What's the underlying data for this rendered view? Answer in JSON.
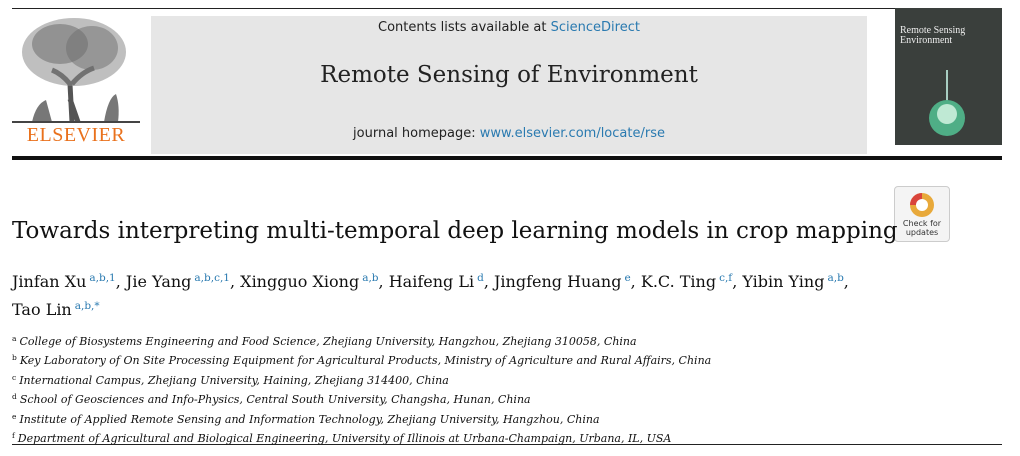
{
  "header": {
    "contents_prefix": "Contents lists available at",
    "contents_link": "ScienceDirect",
    "journal": "Remote Sensing of Environment",
    "homepage_prefix": "journal homepage:",
    "homepage_link": "www.elsevier.com/locate/rse",
    "publisher": "ELSEVIER",
    "cover_lines": [
      "Remote Sensing",
      "Environment"
    ]
  },
  "badge": {
    "lines": [
      "Check for",
      "updates"
    ]
  },
  "title": "Towards interpreting multi-temporal deep learning models in crop mapping",
  "authors": [
    {
      "name": "Jinfan Xu",
      "sup": "a,b,1",
      "after": ","
    },
    {
      "name": "Jie Yang",
      "sup": "a,b,c,1",
      "after": ","
    },
    {
      "name": "Xingguo Xiong",
      "sup": "a,b",
      "after": ","
    },
    {
      "name": "Haifeng Li",
      "sup": "d",
      "after": ","
    },
    {
      "name": "Jingfeng Huang",
      "sup": "e",
      "after": ","
    },
    {
      "name": "K.C. Ting",
      "sup": "c,f",
      "after": ","
    },
    {
      "name": "Yibin Ying",
      "sup": "a,b",
      "after": ","
    },
    {
      "name": "Tao Lin",
      "sup": "a,b,*"
    }
  ],
  "affiliations": [
    {
      "mark": "a",
      "text": "College of Biosystems Engineering and Food Science, Zhejiang University, Hangzhou, Zhejiang 310058, China"
    },
    {
      "mark": "b",
      "text": "Key Laboratory of On Site Processing Equipment for Agricultural Products, Ministry of Agriculture and Rural Affairs, China"
    },
    {
      "mark": "c",
      "text": "International Campus, Zhejiang University, Haining, Zhejiang 314400, China"
    },
    {
      "mark": "d",
      "text": "School of Geosciences and Info-Physics, Central South University, Changsha, Hunan, China"
    },
    {
      "mark": "e",
      "text": "Institute of Applied Remote Sensing and Information Technology, Zhejiang University, Hangzhou, China"
    },
    {
      "mark": "f",
      "text": "Department of Agricultural and Biological Engineering, University of Illinois at Urbana-Champaign, Urbana, IL, USA"
    }
  ]
}
